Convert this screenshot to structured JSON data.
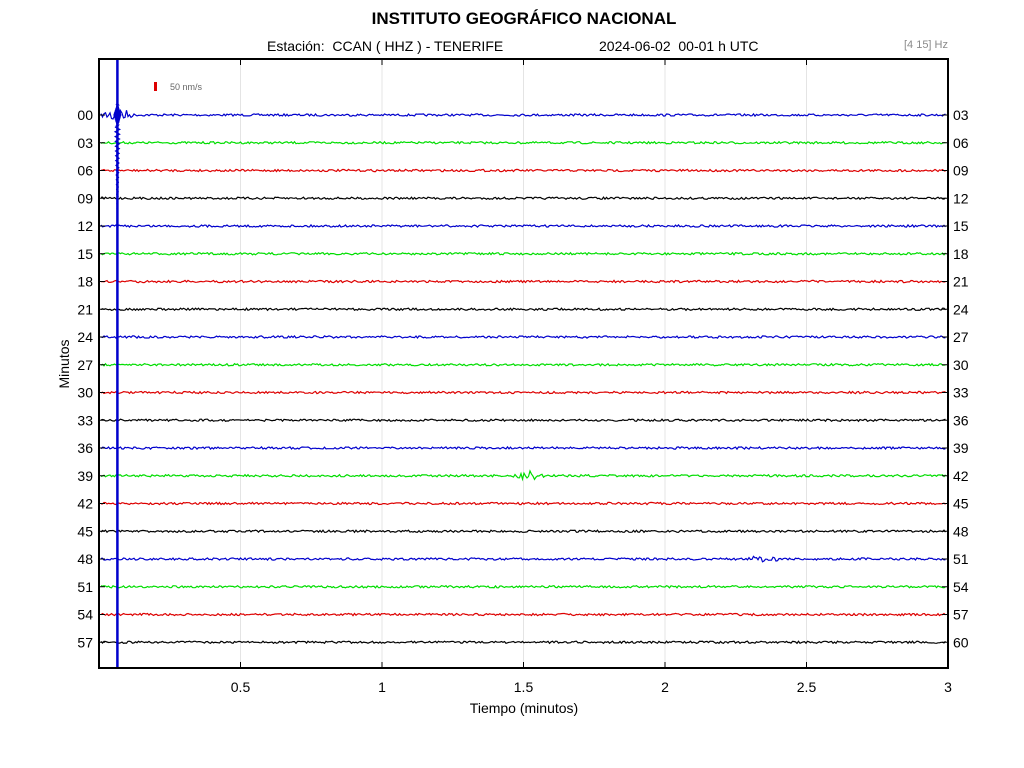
{
  "header": {
    "title": "INSTITUTO GEOGRÁFICO NACIONAL",
    "station": "Estación:  CCAN ( HHZ ) - TENERIFE",
    "datetime": "2024-06-02  00-01 h UTC",
    "filter": "[4 15] Hz"
  },
  "scale_label": "50 nm/s",
  "chart_data": {
    "type": "line",
    "title": "INSTITUTO GEOGRÁFICO NACIONAL",
    "xlabel": "Tiempo (minutos)",
    "ylabel": "Minutos",
    "xlim": [
      0,
      3
    ],
    "x_ticks": [
      "0.5",
      "1",
      "1.5",
      "2",
      "2.5",
      "3"
    ],
    "x_tick_values": [
      0.5,
      1,
      1.5,
      2,
      2.5,
      3
    ],
    "left_tick_labels": [
      "00",
      "03",
      "06",
      "09",
      "12",
      "15",
      "18",
      "21",
      "24",
      "27",
      "30",
      "33",
      "36",
      "39",
      "42",
      "45",
      "48",
      "51",
      "54",
      "57"
    ],
    "right_tick_labels": [
      "03",
      "06",
      "09",
      "12",
      "15",
      "18",
      "21",
      "24",
      "27",
      "30",
      "33",
      "36",
      "39",
      "42",
      "45",
      "48",
      "51",
      "54",
      "57",
      "60"
    ],
    "series_colors": [
      "#0000cc",
      "#00dd00",
      "#dd0000",
      "#000000"
    ],
    "grid": true,
    "event_marker_x": 0.065,
    "notable_events": [
      {
        "trace": 0,
        "x": 0.065
      },
      {
        "trace": 13,
        "x": 1.52
      },
      {
        "trace": 16,
        "x": 2.35
      }
    ]
  }
}
